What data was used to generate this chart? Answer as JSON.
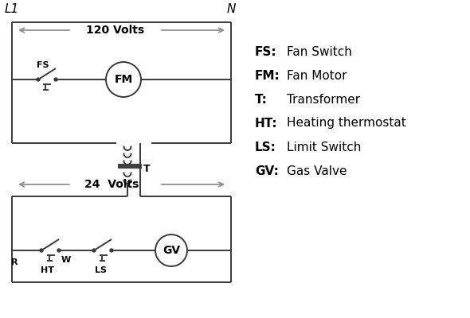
{
  "bg_color": "#ffffff",
  "line_color": "#3a3a3a",
  "arrow_color": "#909090",
  "text_color": "#000000",
  "legend": [
    [
      "FS:",
      "Fan Switch"
    ],
    [
      "FM:",
      "Fan Motor"
    ],
    [
      "T:",
      "Transformer"
    ],
    [
      "HT:",
      "Heating thermostat"
    ],
    [
      "LS:",
      "Limit Switch"
    ],
    [
      "GV:",
      "Gas Valve"
    ]
  ],
  "L1_label": "L1",
  "N_label": "N",
  "v120_label": "120 Volts",
  "v24_label": "24  Volts"
}
